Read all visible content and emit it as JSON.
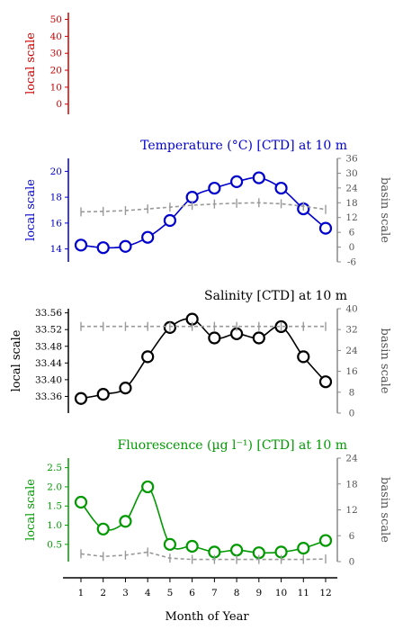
{
  "chart_data": [
    {
      "type": "line",
      "title": "",
      "ylabel": "local scale",
      "color": "#cc0000",
      "ylim": [
        -6,
        54
      ],
      "yticks": [
        0,
        10,
        20,
        30,
        40,
        50
      ],
      "series": []
    },
    {
      "type": "line",
      "title": "Temperature (°C) [CTD] at 10 m",
      "ylabel": "local scale",
      "ylabel_right": "basin scale",
      "color": "#0000cc",
      "ylim": [
        13.0,
        21.0
      ],
      "yticks": [
        14,
        16,
        18,
        20
      ],
      "ylim_right": [
        -6,
        36
      ],
      "yticks_right": [
        -6,
        0,
        6,
        12,
        18,
        24,
        30,
        36
      ],
      "x": [
        1,
        2,
        3,
        4,
        5,
        6,
        7,
        8,
        9,
        10,
        11,
        12
      ],
      "series": [
        {
          "values": [
            14.3,
            14.1,
            14.2,
            14.9,
            16.2,
            18.0,
            18.7,
            19.2,
            19.5,
            18.7,
            17.1,
            15.6
          ]
        },
        {
          "axis": "right",
          "style": "dashed",
          "values": [
            14.3,
            14.5,
            14.8,
            15.5,
            16.2,
            17.0,
            17.5,
            17.8,
            18.0,
            17.6,
            16.6,
            15.3
          ]
        }
      ]
    },
    {
      "type": "line",
      "title": "Salinity [CTD] at 10 m",
      "ylabel": "local scale",
      "ylabel_right": "basin scale",
      "color": "#000000",
      "ylim": [
        33.32,
        33.57
      ],
      "yticks": [
        33.36,
        33.4,
        33.44,
        33.48,
        33.52,
        33.56
      ],
      "ylim_right": [
        0,
        40
      ],
      "yticks_right": [
        0,
        8,
        16,
        24,
        32,
        40
      ],
      "x": [
        1,
        2,
        3,
        4,
        5,
        6,
        7,
        8,
        9,
        10,
        11,
        12
      ],
      "series": [
        {
          "values": [
            33.355,
            33.365,
            33.38,
            33.455,
            33.525,
            33.545,
            33.5,
            33.51,
            33.5,
            33.527,
            33.455,
            33.395
          ]
        },
        {
          "axis": "right",
          "style": "dashed",
          "values": [
            33.2,
            33.2,
            33.2,
            33.2,
            33.2,
            33.2,
            33.2,
            33.2,
            33.2,
            33.2,
            33.2,
            33.2
          ]
        }
      ]
    },
    {
      "type": "line",
      "title": "Fluorescence (µg l⁻¹) [CTD] at 10 m",
      "ylabel": "local scale",
      "ylabel_right": "basin scale",
      "color": "#009900",
      "ylim": [
        0.05,
        2.75
      ],
      "yticks": [
        0.5,
        1.0,
        1.5,
        2.0,
        2.5
      ],
      "ylim_right": [
        0,
        24
      ],
      "yticks_right": [
        0,
        6,
        12,
        18,
        24
      ],
      "x": [
        1,
        2,
        3,
        4,
        5,
        6,
        7,
        8,
        9,
        10,
        11,
        12
      ],
      "series": [
        {
          "values": [
            1.6,
            0.9,
            1.1,
            2.0,
            0.5,
            0.45,
            0.3,
            0.35,
            0.28,
            0.3,
            0.4,
            0.6
          ]
        },
        {
          "axis": "right",
          "style": "dashed",
          "values": [
            1.8,
            1.2,
            1.5,
            2.2,
            0.8,
            0.5,
            0.5,
            0.5,
            0.5,
            0.5,
            0.5,
            0.6
          ]
        }
      ]
    }
  ],
  "xaxis": {
    "label": "Month of Year",
    "ticks": [
      "1",
      "2",
      "3",
      "4",
      "5",
      "6",
      "7",
      "8",
      "9",
      "10",
      "11",
      "12"
    ]
  }
}
